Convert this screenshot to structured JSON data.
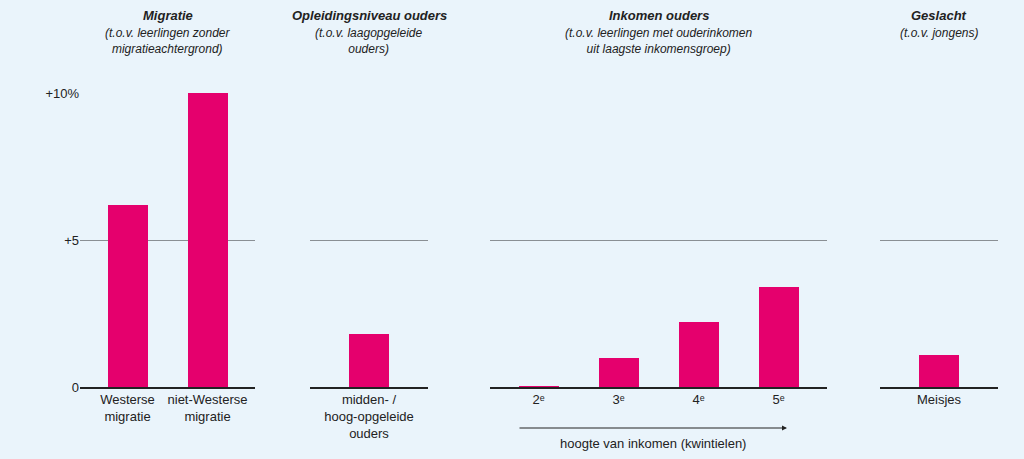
{
  "chart_data": [
    {
      "type": "bar",
      "title": "Migratie",
      "subtitle": "(t.o.v. leerlingen zonder migratieachtergrond)",
      "categories": [
        "Westerse migratie",
        "niet-Westerse migratie"
      ],
      "values": [
        6.2,
        10.0
      ],
      "color": "#e5006d",
      "ylim": [
        0,
        10
      ],
      "yticks": [
        {
          "value": 0,
          "label": "0"
        },
        {
          "value": 5,
          "label": "+5"
        },
        {
          "value": 10,
          "label": "+10%"
        }
      ],
      "grid": true
    },
    {
      "type": "bar",
      "title": "Opleidingsniveau ouders",
      "subtitle": "(t.o.v. laagopgeleide ouders)",
      "categories": [
        "midden- / hoog-opgeleide ouders"
      ],
      "values": [
        1.8
      ],
      "color": "#e5006d",
      "ylim": [
        0,
        10
      ],
      "yticks": [
        {
          "value": 0,
          "label": "0"
        },
        {
          "value": 5,
          "label": "+5"
        },
        {
          "value": 10,
          "label": "+10%"
        }
      ],
      "grid": true,
      "tick_labels": "x"
    },
    {
      "type": "bar",
      "title": "Inkomen ouders",
      "subtitle": "(t.o.v. leerlingen met ouderinkomen uit laagste inkomensgroep)",
      "x_label": "hoogte van inkomen (kwintielen)",
      "categories": [
        "2ᵉ",
        "3ᵉ",
        "4ᵉ",
        "5ᵉ"
      ],
      "values": [
        0.05,
        1.0,
        2.2,
        3.4
      ],
      "color": "#e5006d",
      "ylim": [
        0,
        10
      ],
      "yticks": [
        {
          "value": 0,
          "label": "0"
        },
        {
          "value": 5,
          "label": "+5"
        },
        {
          "value": 10,
          "label": "+10%"
        }
      ],
      "grid": true,
      "tick_labels": "x"
    },
    {
      "type": "bar",
      "title": "Geslacht",
      "subtitle": "(t.o.v. jongens)",
      "categories": [
        "Meisjes"
      ],
      "values": [
        1.1
      ],
      "color": "#e5006d",
      "ylim": [
        0,
        10
      ],
      "yticks": [
        {
          "value": 0,
          "label": "0"
        },
        {
          "value": 5,
          "label": "+5"
        },
        {
          "value": 10,
          "label": "+10%"
        }
      ],
      "grid": true,
      "tick_labels": "x"
    }
  ]
}
